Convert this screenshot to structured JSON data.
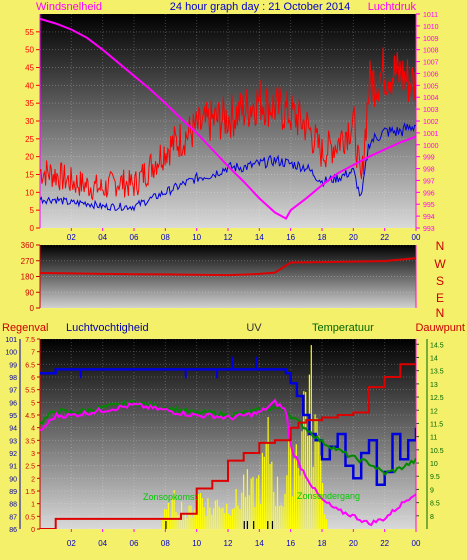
{
  "header": {
    "title": "24 hour graph day : 21 October 2014",
    "left_label": "Windsnelheid",
    "right_label": "Luchtdruk"
  },
  "colors": {
    "background": "#f5f06a",
    "wind_max": "#ff0000",
    "wind_avg": "#0000dd",
    "pressure": "#ff00ff",
    "direction": "#dd0000",
    "humidity": "#0000dd",
    "temperature": "#008800",
    "dewpoint": "#ff00ff",
    "rain": "#dd0000",
    "uv": "#ffff00",
    "sun": "#00cc00"
  },
  "compass": {
    "n": "N",
    "w": "W",
    "s": "S",
    "e": "E",
    "n2": "N"
  },
  "bottom_header": {
    "rain": "Regenval",
    "humidity": "Luchtvochtigheid",
    "uv": "UV",
    "temperature": "Temperatuur",
    "dewpoint": "Dauwpunt"
  },
  "sun_labels": {
    "rise": "Zonsopkomst",
    "set": "Zonsondergang"
  },
  "chart_data": [
    {
      "type": "line",
      "title": "24 hour graph day : 21 October 2014",
      "x_ticks": [
        "02",
        "04",
        "06",
        "08",
        "10",
        "12",
        "14",
        "16",
        "18",
        "20",
        "22",
        "00"
      ],
      "xlim": [
        0,
        24
      ],
      "ylabel": "Windsnelheid",
      "ylim": [
        0,
        60
      ],
      "y_ticks": [
        0,
        5,
        10,
        15,
        20,
        25,
        30,
        35,
        40,
        45,
        50,
        55
      ],
      "y2label": "Luchtdruk",
      "y2lim": [
        993,
        1011
      ],
      "y2_ticks": [
        993,
        994,
        995,
        996,
        997,
        998,
        999,
        1000,
        1001,
        1002,
        1003,
        1004,
        1005,
        1006,
        1007,
        1008,
        1009,
        1010,
        1011
      ],
      "series": [
        {
          "key": "wind_max",
          "axis": "y",
          "x": [
            0,
            1,
            2,
            3,
            4,
            5,
            6,
            7,
            8,
            9,
            10,
            11,
            12,
            13,
            14,
            15,
            16,
            17,
            18,
            19,
            20,
            20.5,
            21,
            22,
            23,
            24
          ],
          "y": [
            16,
            15,
            13,
            12,
            11,
            13,
            12,
            17,
            22,
            25,
            28,
            30,
            31,
            33,
            36,
            34,
            32,
            29,
            21,
            24,
            30,
            12,
            40,
            44,
            43,
            40
          ]
        },
        {
          "key": "wind_avg",
          "axis": "y",
          "x": [
            0,
            1,
            2,
            3,
            4,
            5,
            6,
            7,
            8,
            9,
            10,
            11,
            12,
            13,
            14,
            15,
            16,
            17,
            18,
            19,
            20,
            20.5,
            21,
            22,
            23,
            24
          ],
          "y": [
            8,
            8,
            7,
            7,
            6,
            6,
            6,
            8,
            10,
            12,
            14,
            15,
            17,
            17,
            18,
            19,
            18,
            17,
            13,
            14,
            16,
            8,
            24,
            27,
            27,
            29
          ]
        },
        {
          "key": "pressure",
          "axis": "y2",
          "x": [
            0,
            1,
            2,
            3,
            4,
            5,
            6,
            7,
            8,
            9,
            10,
            11,
            12,
            13,
            14,
            15,
            15.7,
            16,
            17,
            18,
            19,
            20,
            21,
            22,
            23,
            24
          ],
          "y": [
            1010.6,
            1010.2,
            1009.7,
            1009.0,
            1008.0,
            1006.9,
            1005.8,
            1004.7,
            1003.5,
            1002.2,
            1001.0,
            999.6,
            998.2,
            996.9,
            995.5,
            994.3,
            993.8,
            994.5,
            995.5,
            996.6,
            997.6,
            998.3,
            999.0,
            999.6,
            1000.2,
            1000.7
          ]
        }
      ]
    },
    {
      "type": "line",
      "y_ticks": [
        0,
        90,
        180,
        270,
        360
      ],
      "ylim": [
        0,
        360
      ],
      "xlim": [
        0,
        24
      ],
      "series": [
        {
          "key": "direction",
          "x": [
            0,
            2,
            4,
            6,
            8,
            10,
            12,
            14,
            15,
            16,
            18,
            20,
            22,
            24
          ],
          "y": [
            200,
            198,
            195,
            193,
            192,
            190,
            188,
            195,
            202,
            260,
            262,
            265,
            268,
            285
          ]
        }
      ]
    },
    {
      "type": "line",
      "xlim": [
        0,
        24
      ],
      "x_ticks": [
        "02",
        "04",
        "06",
        "08",
        "10",
        "12",
        "14",
        "16",
        "18",
        "20",
        "22",
        "00"
      ],
      "rain_ticks": [
        "0",
        "0.5",
        "1",
        "1.5",
        "2",
        "2.5",
        "3",
        "3.5",
        "4",
        "4.5",
        "5",
        "5.5",
        "6",
        "6.5",
        "7",
        "7.5"
      ],
      "rain_lim": [
        0,
        7.5
      ],
      "humidity_ticks": [
        "86",
        "87",
        "88",
        "89",
        "90",
        "91",
        "92",
        "93",
        "94",
        "95",
        "96",
        "97",
        "98",
        "99",
        "100",
        "101"
      ],
      "humidity_lim": [
        86,
        101
      ],
      "temp_ticks": [
        "8",
        "8.5",
        "9",
        "9.5",
        "10",
        "10.5",
        "11",
        "11.5",
        "12",
        "12.5",
        "13",
        "13.5",
        "14",
        "14.5"
      ],
      "temp_lim": [
        7.5,
        14.7
      ],
      "series": [
        {
          "key": "humidity",
          "axis": "humidity",
          "x": [
            0,
            1,
            2,
            3,
            4,
            6,
            8,
            10,
            12,
            14,
            15,
            15.7,
            16,
            16.4,
            16.8,
            17.2,
            17.6,
            18,
            18.5,
            19,
            19.5,
            20,
            20.5,
            21,
            21.5,
            22,
            22.5,
            23,
            23.5,
            24
          ],
          "y": [
            98.3,
            98.6,
            98.6,
            98.6,
            98.6,
            98.6,
            98.6,
            98.6,
            98.6,
            98.6,
            98.6,
            98.3,
            97.5,
            96.5,
            95.0,
            93.5,
            93.0,
            91.5,
            92.5,
            93.5,
            91.0,
            90.0,
            92.0,
            93.0,
            89.5,
            90.5,
            93.5,
            91.5,
            93.0,
            94.0
          ]
        },
        {
          "key": "temperature",
          "axis": "temp",
          "x": [
            0,
            1,
            2,
            3,
            4,
            5,
            6,
            7,
            8,
            9,
            10,
            11,
            12,
            13,
            14,
            15,
            15.7,
            16,
            17,
            18,
            19,
            20,
            21,
            22,
            23,
            24
          ],
          "y": [
            11.5,
            12.0,
            11.9,
            12.0,
            12.1,
            12.2,
            12.3,
            12.2,
            12.1,
            12.0,
            11.9,
            11.9,
            11.8,
            11.9,
            12.0,
            12.1,
            12.0,
            11.8,
            11.3,
            10.8,
            10.5,
            10.2,
            10.0,
            9.6,
            9.8,
            10.1
          ]
        },
        {
          "key": "dewpoint",
          "axis": "temp",
          "x": [
            0,
            1,
            2,
            3,
            4,
            5,
            6,
            7,
            8,
            9,
            10,
            11,
            12,
            13,
            14,
            15,
            15.7,
            16,
            16.5,
            17,
            17.5,
            18,
            19,
            20,
            21,
            22,
            23,
            24
          ],
          "y": [
            11.2,
            11.8,
            11.8,
            11.9,
            12.0,
            12.1,
            12.2,
            12.1,
            12.0,
            11.9,
            11.8,
            11.8,
            11.7,
            11.8,
            11.9,
            12.3,
            12.0,
            10.6,
            10.0,
            9.5,
            9.0,
            8.6,
            8.2,
            8.0,
            7.7,
            7.9,
            8.4,
            8.9
          ]
        },
        {
          "key": "rain",
          "axis": "rain",
          "x": [
            0,
            1,
            2,
            3,
            4,
            5,
            6,
            7,
            7.5,
            8,
            9,
            10,
            11,
            12,
            13,
            14,
            15,
            16,
            16.5,
            17,
            18,
            19,
            20,
            21,
            22,
            23,
            24
          ],
          "y": [
            0,
            0.4,
            0.4,
            0.4,
            0.4,
            0.4,
            0.4,
            0.4,
            0.4,
            0.4,
            0.6,
            1.6,
            1.9,
            2.7,
            3.0,
            3.4,
            3.5,
            4.0,
            4.2,
            4.3,
            4.4,
            4.5,
            4.6,
            5.6,
            6.0,
            6.5,
            7.5
          ]
        },
        {
          "key": "uv",
          "axis": "uv",
          "bars": true,
          "x": [
            7.8,
            8.2,
            8.6,
            9.0,
            9.4,
            9.8,
            10.2,
            10.6,
            11.0,
            11.4,
            11.8,
            12.2,
            12.6,
            13.0,
            13.4,
            13.8,
            14.2,
            14.6,
            15.0,
            15.4,
            15.8,
            16.2,
            16.6,
            17.0,
            17.4,
            17.8,
            18.2
          ],
          "y": [
            0.5,
            0.8,
            1.2,
            0.9,
            0.6,
            1.0,
            1.5,
            1.1,
            0.8,
            1.4,
            0.9,
            1.3,
            1.1,
            2.0,
            1.4,
            1.8,
            2.4,
            3.6,
            1.8,
            1.2,
            2.6,
            3.4,
            3.9,
            6.4,
            5.0,
            3.0,
            0.6
          ]
        }
      ]
    }
  ]
}
